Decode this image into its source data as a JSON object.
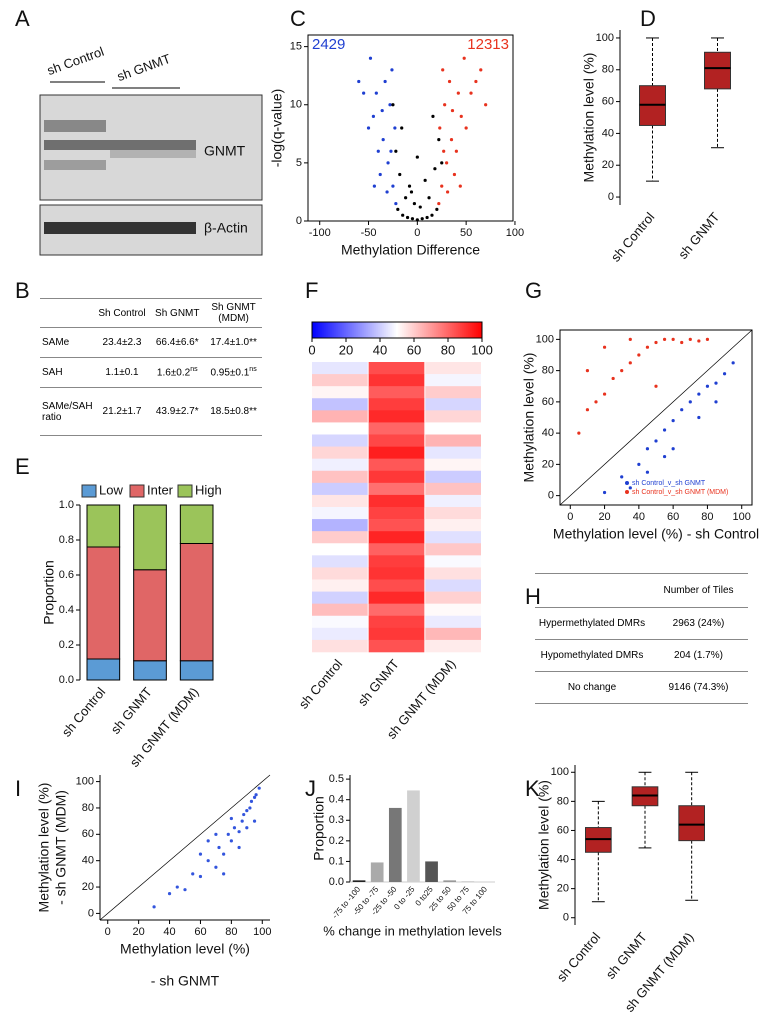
{
  "panel_labels": [
    "A",
    "B",
    "C",
    "D",
    "E",
    "F",
    "G",
    "H",
    "I",
    "J",
    "K"
  ],
  "blot": {
    "groups": [
      "sh Control",
      "sh GNMT"
    ],
    "bands": [
      "GNMT",
      "β-Actin"
    ]
  },
  "table_b": {
    "columns": [
      "Sh Control",
      "Sh GNMT",
      "Sh GNMT (MDM)"
    ],
    "rows": [
      {
        "label": "SAMe",
        "cells": [
          {
            "v": "23.4±2.3"
          },
          {
            "v": "66.4±6.6*"
          },
          {
            "v": "17.4±1.0**"
          }
        ]
      },
      {
        "label": "SAH",
        "cells": [
          {
            "v": "1.1±0.1"
          },
          {
            "v": "1.6±0.2",
            "sup": "ns"
          },
          {
            "v": "0.95±0.1",
            "sup": "ns"
          }
        ]
      },
      {
        "label": "SAMe/SAH ratio",
        "cells": [
          {
            "v": "21.2±1.7"
          },
          {
            "v": "43.9±2.7*"
          },
          {
            "v": "18.5±0.8**"
          }
        ]
      }
    ]
  },
  "table_h": {
    "column": "Number of Tiles",
    "rows": [
      [
        "Hypermethylated DMRs",
        "2963 (24%)"
      ],
      [
        "Hypomethylated DMRs",
        "204 (1.7%)"
      ],
      [
        "No change",
        "9146 (74.3%)"
      ]
    ]
  },
  "chart_data": [
    {
      "type": "scatter",
      "frame": true,
      "xlabel": "Methylation Difference",
      "ylabel": "-log(q-value)",
      "xlim": [
        -112,
        98
      ],
      "xticks": [
        -100,
        -50,
        0,
        50,
        100
      ],
      "ylim": [
        0,
        16
      ],
      "yticks": [
        0,
        5,
        10,
        15
      ],
      "annotations": [
        {
          "text": "2429",
          "color": "#1f3fd1",
          "position": "upper left"
        },
        {
          "text": "12313",
          "color": "#e8321e",
          "position": "upper right"
        }
      ],
      "series": [
        {
          "color": "#1f3fd1",
          "x": [
            -22,
            -25,
            -30,
            -35,
            -40,
            -45,
            -50,
            -55,
            -60,
            -23,
            -28,
            -33,
            -38,
            -44,
            -48,
            -27,
            -31,
            -36,
            -26,
            -42
          ],
          "y": [
            1.5,
            3,
            5,
            7,
            6,
            9,
            8,
            11,
            12,
            8,
            10,
            12,
            4,
            3,
            14,
            6,
            2.5,
            9.5,
            13,
            11
          ]
        },
        {
          "color": "#e8321e",
          "x": [
            22,
            25,
            30,
            35,
            40,
            45,
            50,
            55,
            60,
            70,
            23,
            28,
            33,
            38,
            44,
            48,
            27,
            31,
            36,
            26,
            42,
            65
          ],
          "y": [
            1.5,
            3,
            5,
            7,
            6,
            9,
            8,
            11,
            12,
            10,
            8,
            10,
            12,
            4,
            3,
            14,
            6,
            2.5,
            9.5,
            13,
            11,
            13
          ]
        },
        {
          "color": "#000000",
          "x": [
            -20,
            -15,
            -10,
            -5,
            0,
            5,
            10,
            15,
            20,
            -12,
            12,
            -8,
            8,
            -18,
            18,
            -3,
            3,
            -22,
            22,
            -16,
            16,
            -25,
            25,
            0,
            -6
          ],
          "y": [
            1,
            0.5,
            0.3,
            0.2,
            0.1,
            0.2,
            0.3,
            0.5,
            1,
            2,
            2,
            3,
            3.5,
            4,
            4.5,
            1.5,
            1.2,
            6,
            7,
            8,
            9,
            10,
            5,
            5.5,
            2.5
          ]
        }
      ]
    },
    {
      "type": "box",
      "color": "#b22222",
      "ylabel": "Methylation level (%)",
      "categories": [
        "sh Control",
        "sh GNMT"
      ],
      "ylim": [
        -5,
        105
      ],
      "yticks": [
        0,
        20,
        40,
        60,
        80,
        100
      ],
      "boxes": [
        {
          "min": 10,
          "q1": 45,
          "median": 58,
          "q3": 70,
          "max": 100
        },
        {
          "min": 31,
          "q1": 68,
          "median": 81,
          "q3": 91,
          "max": 100
        }
      ]
    },
    {
      "type": "stacked_bar",
      "ylabel": "Proportion",
      "legend": "top",
      "categories": [
        "sh Control",
        "sh GNMT",
        "sh GNMT (MDM)"
      ],
      "ylim": [
        0,
        1
      ],
      "yticks": [
        {
          "value": 0,
          "label": "0.0"
        },
        0.2,
        0.4,
        0.6,
        0.8,
        {
          "value": 1,
          "label": "1.0"
        }
      ],
      "series": [
        {
          "name": "Low",
          "color": "#5b9bd5",
          "values": [
            0.12,
            0.11,
            0.11
          ]
        },
        {
          "name": "Inter",
          "color": "#e06666",
          "values": [
            0.64,
            0.52,
            0.67
          ]
        },
        {
          "name": "High",
          "color": "#9bc45a",
          "values": [
            0.24,
            0.37,
            0.22
          ]
        }
      ]
    },
    {
      "type": "heatmap",
      "categories": [
        "sh Control",
        "sh GNMT",
        "sh GNMT (MDM)"
      ],
      "zlim": [
        0,
        100
      ],
      "zticks": [
        0,
        20,
        40,
        60,
        80,
        100
      ],
      "colors": [
        "#0000ff",
        "#ffffff",
        "#ff0000"
      ],
      "values": [
        [
          45,
          85,
          55
        ],
        [
          60,
          90,
          48
        ],
        [
          52,
          82,
          60
        ],
        [
          38,
          88,
          42
        ],
        [
          65,
          92,
          58
        ],
        [
          50,
          80,
          50
        ],
        [
          42,
          86,
          65
        ],
        [
          58,
          94,
          45
        ],
        [
          47,
          83,
          52
        ],
        [
          62,
          89,
          40
        ],
        [
          40,
          78,
          62
        ],
        [
          55,
          91,
          47
        ],
        [
          48,
          87,
          57
        ],
        [
          35,
          84,
          53
        ],
        [
          60,
          93,
          44
        ],
        [
          50,
          81,
          61
        ],
        [
          44,
          88,
          49
        ],
        [
          57,
          90,
          56
        ],
        [
          53,
          85,
          43
        ],
        [
          41,
          92,
          59
        ],
        [
          63,
          79,
          51
        ],
        [
          49,
          87,
          46
        ],
        [
          46,
          89,
          64
        ],
        [
          56,
          84,
          54
        ]
      ]
    },
    {
      "type": "scatter",
      "frame": true,
      "diagonal": true,
      "legend": "lower right",
      "xlabel": "Methylation level (%) - sh Control",
      "ylabel": "Methylation level (%)",
      "xlim": [
        -6,
        106
      ],
      "xticks": [
        0,
        20,
        40,
        60,
        80,
        100
      ],
      "ylim": [
        -6,
        106
      ],
      "yticks": [
        0,
        20,
        40,
        60,
        80,
        100
      ],
      "series": [
        {
          "name": "sh Control_v_sh GNMT",
          "color": "#1f3fd1",
          "x": [
            20,
            30,
            40,
            45,
            50,
            55,
            60,
            65,
            70,
            75,
            80,
            85,
            90,
            95,
            35,
            60,
            75,
            55,
            85,
            45
          ],
          "y": [
            2,
            12,
            20,
            30,
            35,
            42,
            48,
            55,
            60,
            65,
            70,
            72,
            78,
            85,
            5,
            30,
            50,
            25,
            60,
            15
          ]
        },
        {
          "name": "sh Control_v_sh GNMT (MDM)",
          "color": "#e8321e",
          "x": [
            5,
            10,
            15,
            20,
            25,
            30,
            35,
            40,
            45,
            50,
            55,
            60,
            65,
            70,
            75,
            80,
            20,
            35,
            10,
            50
          ],
          "y": [
            40,
            55,
            60,
            65,
            75,
            80,
            85,
            90,
            95,
            98,
            100,
            100,
            98,
            100,
            99,
            100,
            95,
            100,
            80,
            70
          ]
        }
      ]
    },
    {
      "type": "scatter",
      "diagonal": true,
      "xlabel": [
        "Methylation level (%)",
        "- sh GNMT"
      ],
      "ylabel": [
        "Methylation level (%)",
        "- sh GNMT (MDM)"
      ],
      "xlim": [
        -5,
        105
      ],
      "xticks": [
        0,
        20,
        40,
        60,
        80,
        100
      ],
      "ylim": [
        -5,
        105
      ],
      "yticks": [
        0,
        20,
        40,
        60,
        80,
        100
      ],
      "series": [
        {
          "color": "#3355dd",
          "x": [
            30,
            40,
            45,
            50,
            55,
            60,
            65,
            70,
            72,
            75,
            78,
            80,
            82,
            85,
            87,
            88,
            90,
            92,
            93,
            95,
            96,
            98,
            70,
            60,
            80,
            85,
            90,
            95,
            75,
            65
          ],
          "y": [
            5,
            15,
            20,
            18,
            30,
            28,
            40,
            35,
            50,
            45,
            60,
            55,
            65,
            62,
            70,
            75,
            78,
            80,
            85,
            88,
            90,
            95,
            60,
            45,
            72,
            50,
            65,
            70,
            30,
            55
          ]
        }
      ]
    },
    {
      "type": "bar",
      "xlabel": "% change in methylation levels",
      "ylabel": "Proportion",
      "categories": [
        "-75 to -100",
        "-50 to -75",
        "-25 to -50",
        "0 to -25",
        "0 to25",
        "25 to 50",
        "50 to 75",
        "75 to 100"
      ],
      "values": [
        0.008,
        0.095,
        0.36,
        0.445,
        0.1,
        0.008,
        0.003,
        0.001
      ],
      "colors": [
        "#222222",
        "#aaaaaa",
        "#777777",
        "#d0d0d0",
        "#555555",
        "#999999",
        "#bbbbbb",
        "#cccccc"
      ],
      "ylim": [
        0,
        0.52
      ],
      "yticks": [
        {
          "value": 0,
          "label": "0.0"
        },
        0.1,
        0.2,
        0.3,
        0.4,
        0.5
      ]
    },
    {
      "type": "box",
      "color": "#b22222",
      "ylabel": "Methylation level (%)",
      "categories": [
        "sh Control",
        "sh GNMT",
        "sh GNMT (MDM)"
      ],
      "ylim": [
        -5,
        105
      ],
      "yticks": [
        0,
        20,
        40,
        60,
        80,
        100
      ],
      "boxes": [
        {
          "min": 11,
          "q1": 45,
          "median": 54,
          "q3": 62,
          "max": 80
        },
        {
          "min": 48,
          "q1": 77,
          "median": 84,
          "q3": 90,
          "max": 100
        },
        {
          "min": 12,
          "q1": 53,
          "median": 64,
          "q3": 77,
          "max": 100
        }
      ]
    }
  ]
}
